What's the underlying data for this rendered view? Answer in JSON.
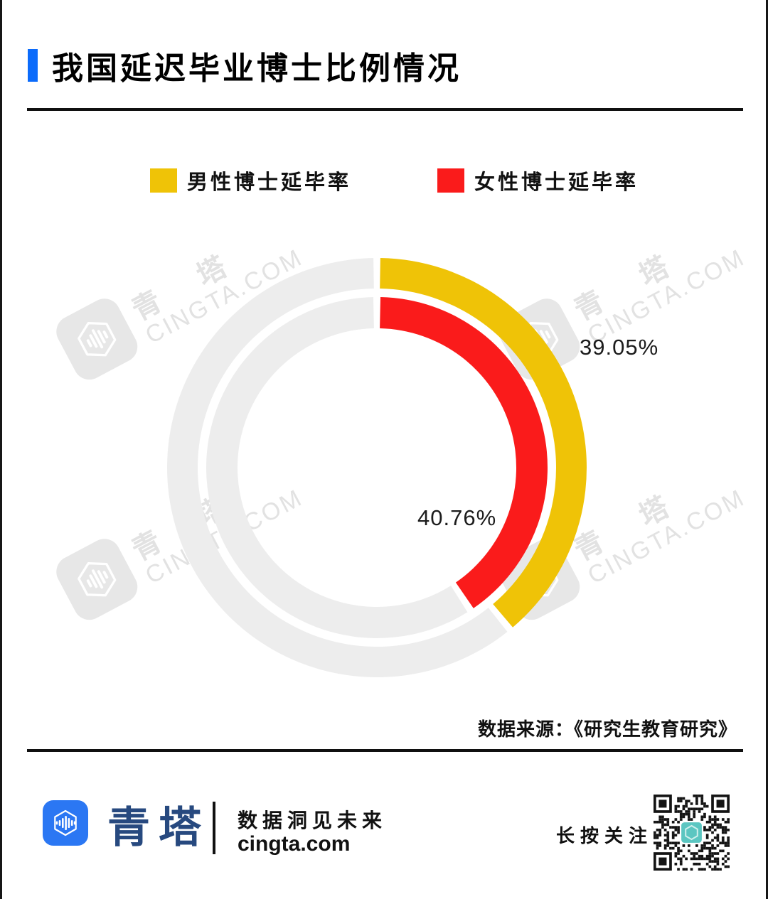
{
  "header": {
    "title": "我国延迟毕业博士比例情况"
  },
  "legend": {
    "items": [
      {
        "label": "男性博士延毕率",
        "color": "#EFC307"
      },
      {
        "label": "女性博士延毕率",
        "color": "#FA1B1B"
      }
    ]
  },
  "chart_data": {
    "type": "donut",
    "title": "我国延迟毕业博士比例情况",
    "series": [
      {
        "name": "男性博士延毕率",
        "value": 39.05,
        "label": "39.05%",
        "color": "#EFC307",
        "ring": "outer"
      },
      {
        "name": "女性博士延毕率",
        "value": 40.76,
        "label": "40.76%",
        "color": "#FA1B1B",
        "ring": "inner"
      }
    ],
    "unit": "%",
    "track_color": "#EDEDED",
    "start_angle_deg": 0,
    "direction": "clockwise",
    "legend_position": "top",
    "source": "数据来源：《研究生教育研究》"
  },
  "source": {
    "text": "数据来源：《研究生教育研究》"
  },
  "watermark": {
    "cn": "青 塔",
    "en": "CINGTA.COM"
  },
  "footer": {
    "brand": "青塔",
    "tagline": "数据洞见未来",
    "site": "cingta.com",
    "follow": "长按关注"
  }
}
